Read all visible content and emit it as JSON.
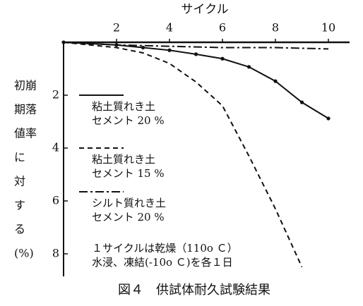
{
  "chart_data": {
    "type": "line",
    "title": "図４　供試体耐久試験結果",
    "x_label": "サイクル",
    "y_label_lines": [
      "初崩",
      "期落",
      "値率",
      "に",
      "対",
      "す",
      "る",
      "(%)"
    ],
    "xlim": [
      0,
      10.8
    ],
    "xticks": [
      2,
      4,
      6,
      8,
      10
    ],
    "ylim": [
      0,
      8.8
    ],
    "yticks": [
      2,
      4,
      6,
      8
    ],
    "y_inverted": true,
    "note": "１サイクルは乾燥（110o Ｃ）\n水浸、凍結(-10o Ｃ)を各１日",
    "series": [
      {
        "name": "粘土質れき土\nセメント 20 %",
        "color": "#111111",
        "style": "solid",
        "markers": true,
        "x": [
          0,
          1,
          2,
          3,
          4,
          5,
          6,
          7,
          8,
          9,
          10
        ],
        "values": [
          0,
          0.05,
          0.1,
          0.2,
          0.3,
          0.45,
          0.62,
          0.93,
          1.47,
          2.27,
          2.88
        ]
      },
      {
        "name": "粘土質れき土\nセメント 15 %",
        "color": "#111111",
        "style": "dashed",
        "markers": false,
        "x": [
          0,
          2,
          3,
          4,
          5,
          6,
          7,
          8,
          9
        ],
        "values": [
          0,
          0.2,
          0.4,
          0.8,
          1.5,
          2.4,
          4.3,
          6.3,
          8.5
        ]
      },
      {
        "name": "シルト質れき土\nセメント 20 %",
        "color": "#111111",
        "style": "dashdot",
        "markers": false,
        "x": [
          0,
          2,
          4,
          6,
          8,
          10
        ],
        "values": [
          0,
          0.1,
          0.15,
          0.2,
          0.2,
          0.25
        ]
      }
    ]
  }
}
